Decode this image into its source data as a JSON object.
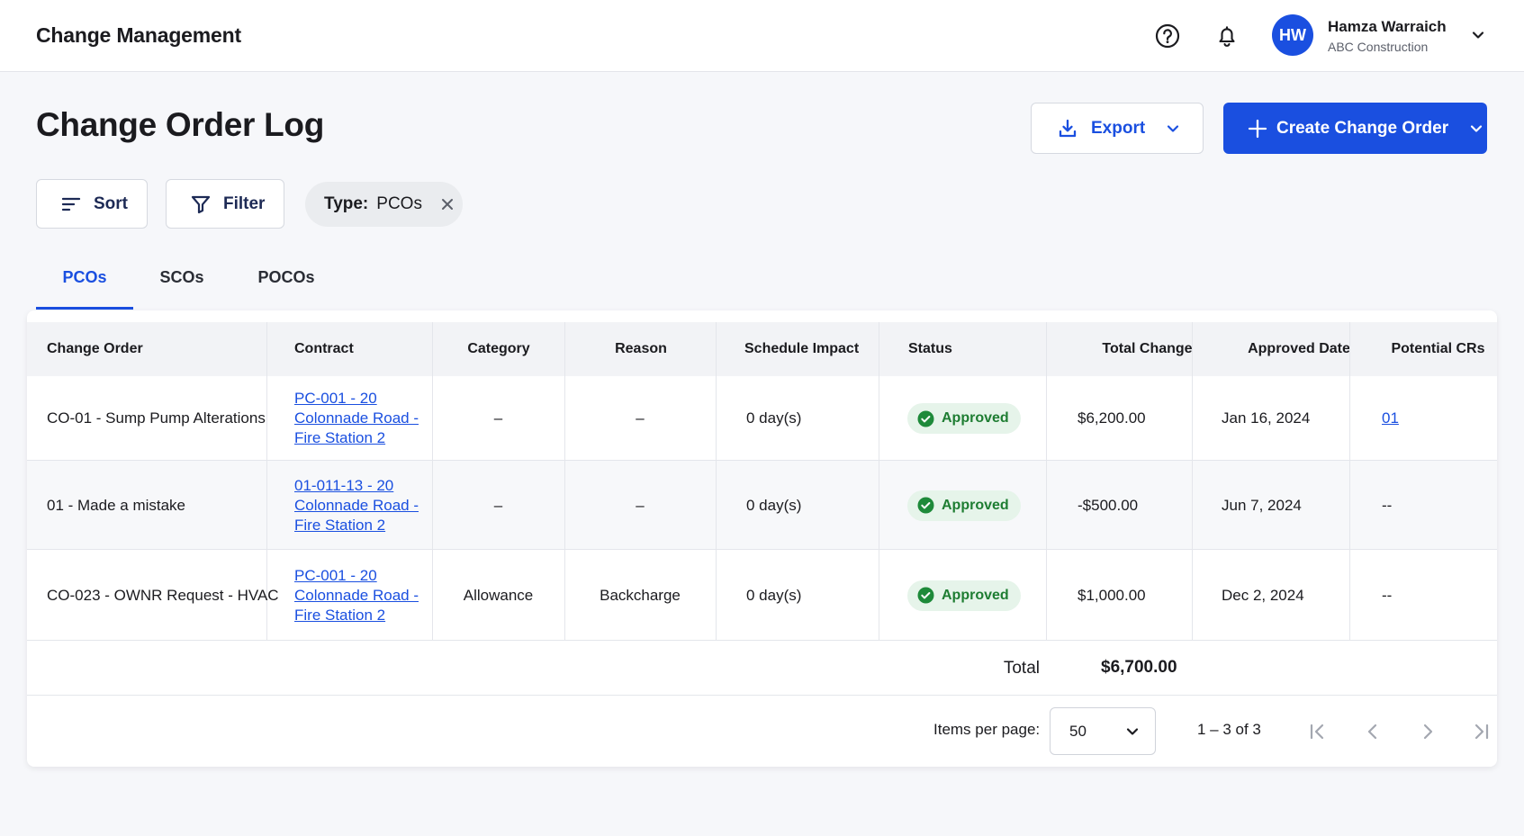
{
  "app": {
    "title": "Change Management"
  },
  "header": {
    "help_icon": "help-circle-icon",
    "notifications_icon": "bell-icon",
    "user": {
      "initials": "HW",
      "name": "Hamza Warraich",
      "organization": "ABC Construction"
    }
  },
  "page": {
    "title": "Change Order Log",
    "export_label": "Export",
    "create_label": "Create Change Order"
  },
  "toolbar": {
    "sort_label": "Sort",
    "filter_label": "Filter",
    "chip_key": "Type:",
    "chip_value": "PCOs"
  },
  "tabs": [
    {
      "label": "PCOs",
      "active": true
    },
    {
      "label": "SCOs",
      "active": false
    },
    {
      "label": "POCOs",
      "active": false
    }
  ],
  "table": {
    "columns": [
      "Change Order",
      "Contract",
      "Category",
      "Reason",
      "Schedule Impact",
      "Status",
      "Total Change",
      "Approved Date",
      "Potential CRs"
    ],
    "rows": [
      {
        "change_order": "CO-01 - Sump Pump Alterations",
        "contract_lines": [
          "PC-001 - 20",
          "Colonnade Road -",
          "Fire Station 2"
        ],
        "category": "–",
        "reason": "–",
        "schedule_impact": "0 day(s)",
        "status": "Approved",
        "total_change": "$6,200.00",
        "approved_date": "Jan 16, 2024",
        "potential_crs": "01",
        "potential_crs_is_link": true
      },
      {
        "change_order": "01 - Made a mistake",
        "contract_lines": [
          "01-011-13 - 20",
          "Colonnade Road -",
          "Fire Station 2"
        ],
        "category": "–",
        "reason": "–",
        "schedule_impact": "0 day(s)",
        "status": "Approved",
        "total_change": "-$500.00",
        "approved_date": "Jun 7, 2024",
        "potential_crs": "--",
        "potential_crs_is_link": false
      },
      {
        "change_order": "CO-023 - OWNR Request - HVAC",
        "contract_lines": [
          "PC-001 - 20",
          "Colonnade Road -",
          "Fire Station 2"
        ],
        "category": "Allowance",
        "reason": "Backcharge",
        "schedule_impact": "0 day(s)",
        "status": "Approved",
        "total_change": "$1,000.00",
        "approved_date": "Dec 2, 2024",
        "potential_crs": "--",
        "potential_crs_is_link": false
      }
    ],
    "total_label": "Total",
    "total_value": "$6,700.00"
  },
  "pagination": {
    "items_per_page_label": "Items per page:",
    "items_per_page_value": "50",
    "range_text": "1 – 3 of 3"
  },
  "colors": {
    "primary": "#1a4fe0",
    "approved_bg": "#e6f4ea",
    "approved_text": "#1e7d32"
  }
}
